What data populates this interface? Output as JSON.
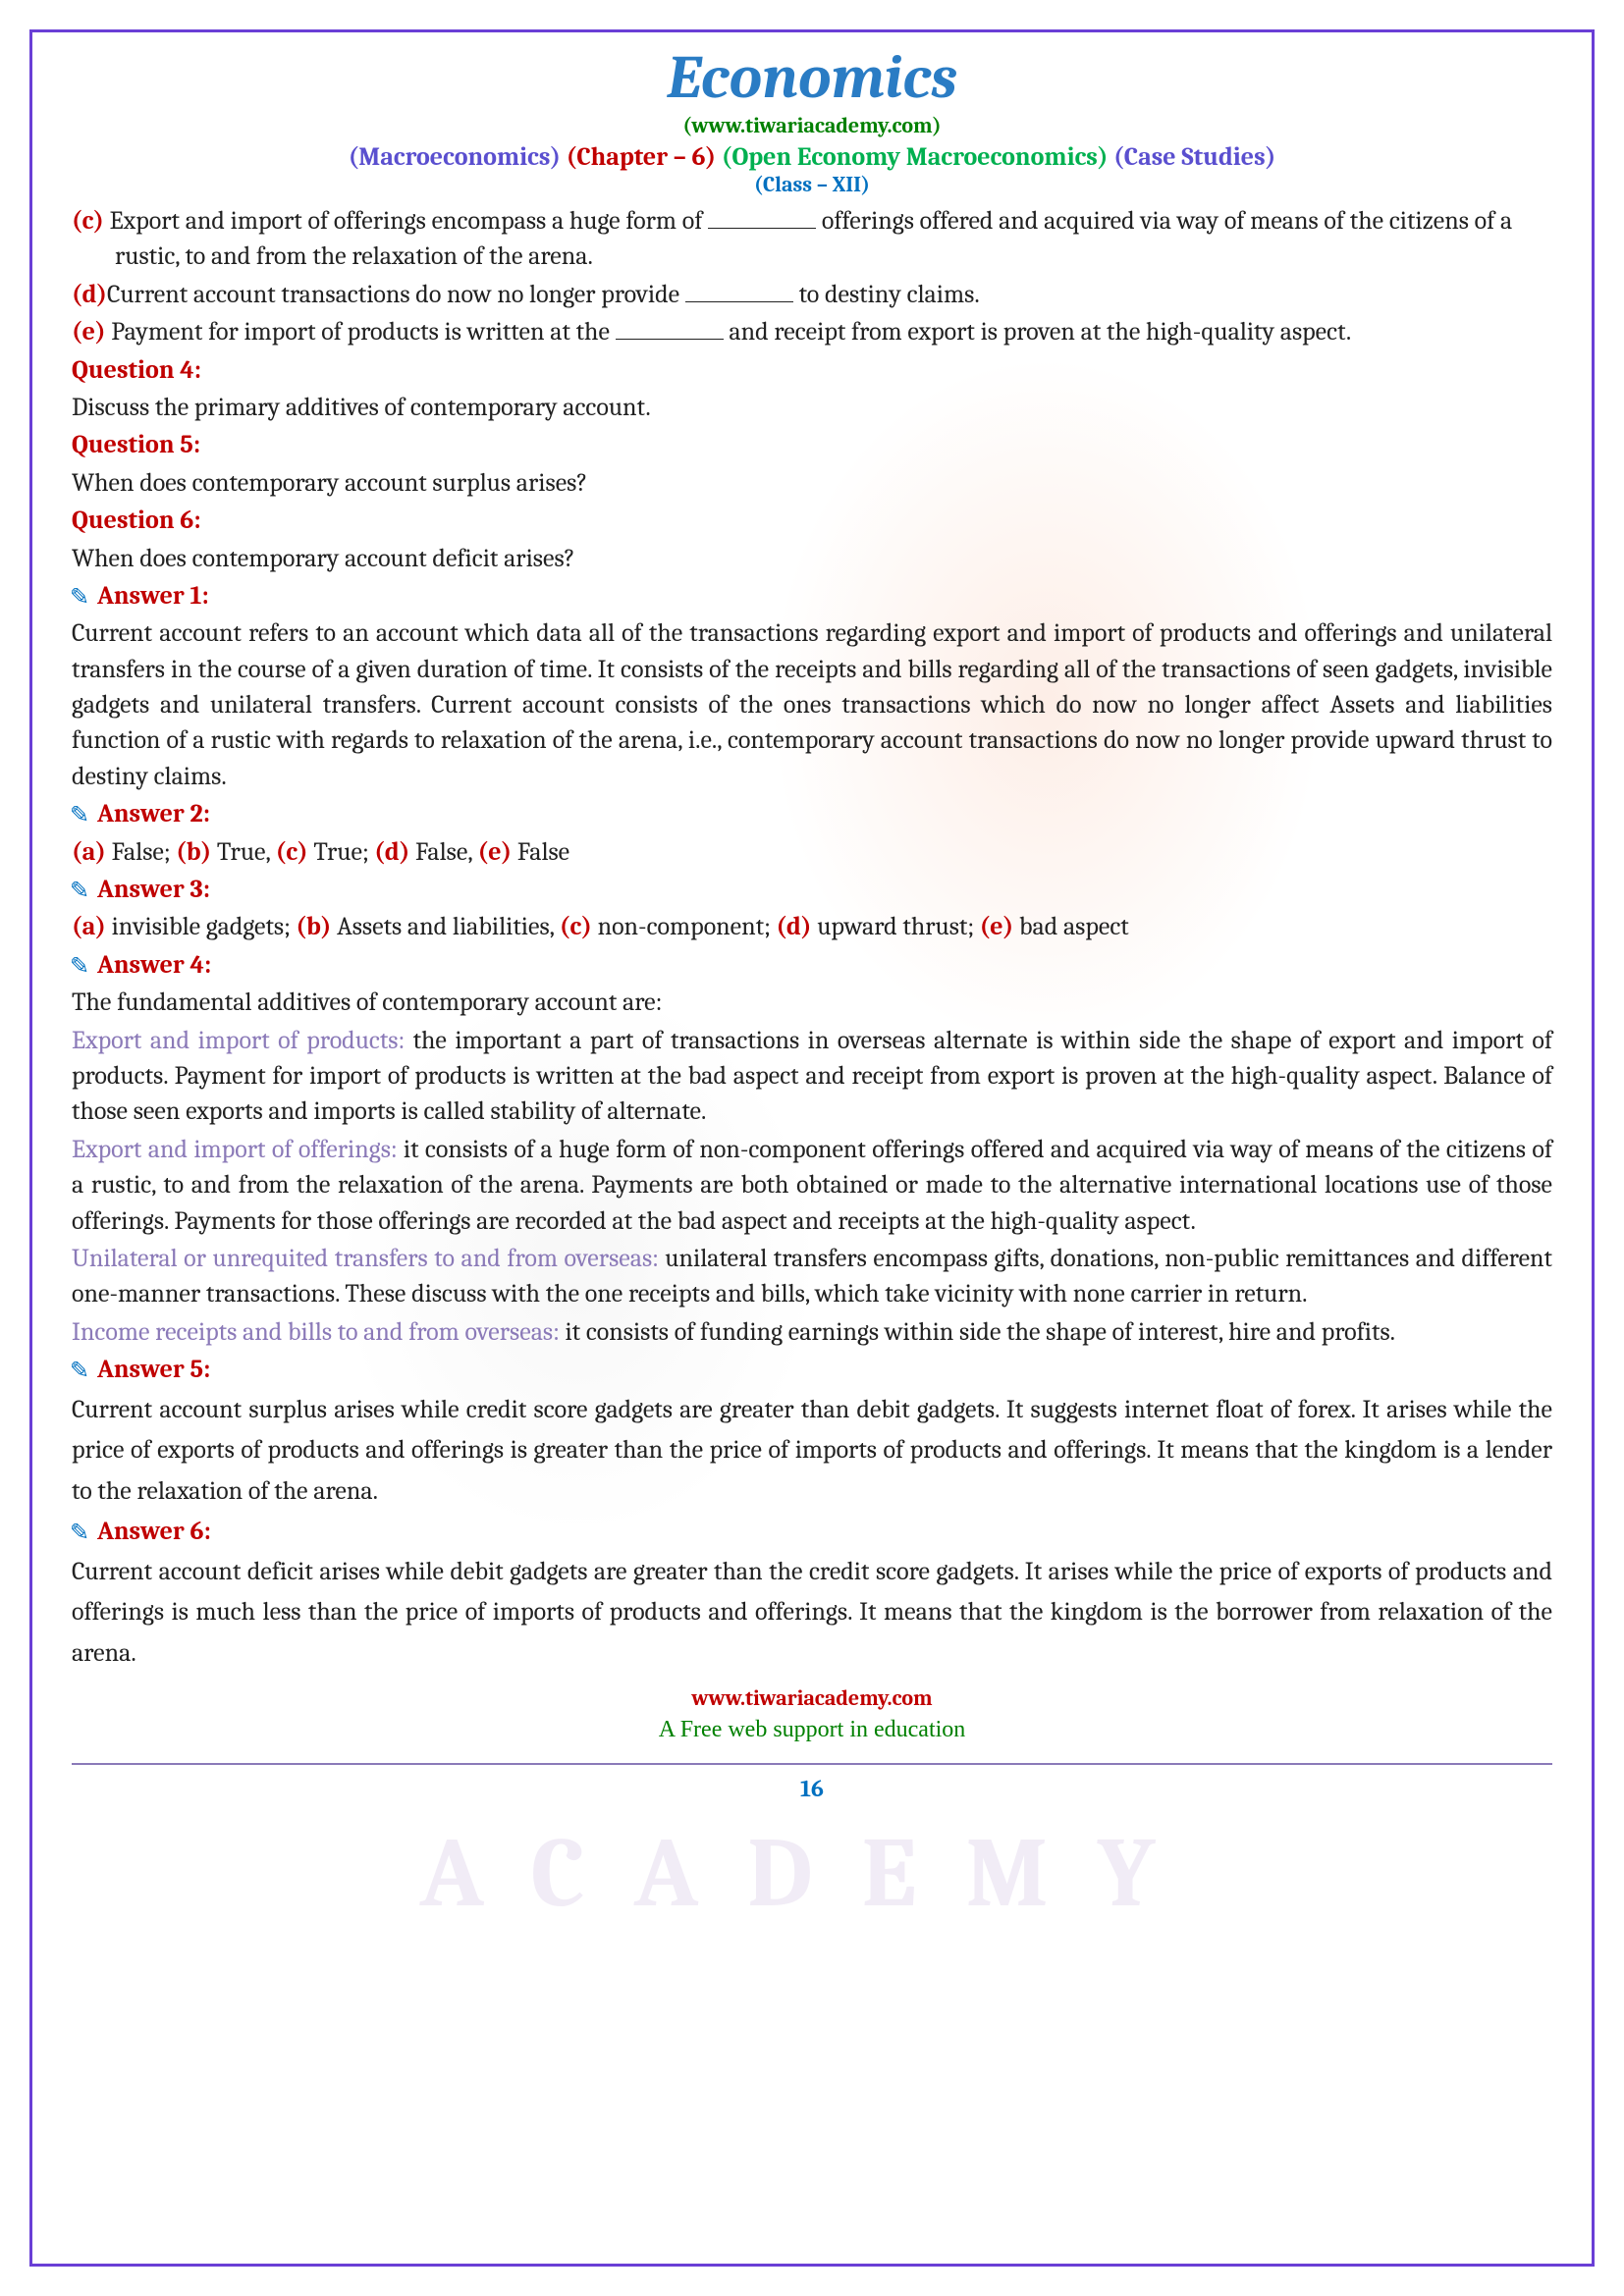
{
  "header": {
    "title": "Economics",
    "website": "(www.tiwariacademy.com)",
    "macro": "(Macroeconomics)",
    "chapter": "(Chapter – 6)",
    "chapterName": "(Open Economy Macroeconomics)",
    "caseStudies": "(Case Studies)",
    "classLabel": "(Class – XII)"
  },
  "options": {
    "c_label": "(c) ",
    "c_text1": "Export and import of offerings encompass a huge form of ",
    "c_text2": " offerings offered and acquired via way of means of the citizens of a rustic, to and from the relaxation of the arena.",
    "d_label": "(d)",
    "d_text1": "Current account transactions do now no longer provide ",
    "d_text2": " to destiny claims.",
    "e_label": "(e) ",
    "e_text1": "Payment for import of products is written at the ",
    "e_text2": " and receipt from export is proven at the high-quality aspect."
  },
  "q4": {
    "head": "Question 4:",
    "body": "Discuss the primary additives of contemporary account."
  },
  "q5": {
    "head": "Question 5:",
    "body": "When does contemporary account surplus arises?"
  },
  "q6": {
    "head": "Question 6:",
    "body": "When does contemporary account deficit arises?"
  },
  "a1": {
    "head": "Answer 1:",
    "body": "Current account refers to an account which data all of the transactions regarding export and import of products and offerings and unilateral transfers in the course of a given duration of time. It consists of the receipts and bills regarding all of the transactions of seen gadgets, invisible gadgets and unilateral transfers. Current account consists of the ones transactions which do now no longer affect Assets and liabilities function of a rustic with regards to relaxation of the arena, i.e., contemporary account transactions do now no longer provide upward thrust to destiny claims."
  },
  "a2": {
    "head": "Answer 2:",
    "a": "(a) ",
    "a_txt": "False; ",
    "b": "(b) ",
    "b_txt": "True, ",
    "c": "(c) ",
    "c_txt": "True; ",
    "d": "(d) ",
    "d_txt": "False, ",
    "e": "(e) ",
    "e_txt": "False"
  },
  "a3": {
    "head": "Answer 3:",
    "a": "(a) ",
    "a_txt": "invisible gadgets; ",
    "b": "(b) ",
    "b_txt": "Assets and liabilities, ",
    "c": "(c) ",
    "c_txt": "non-component; ",
    "d": "(d) ",
    "d_txt": "upward thrust; ",
    "e": "(e) ",
    "e_txt": "bad aspect"
  },
  "a4": {
    "head": "Answer 4:",
    "intro": "The fundamental additives of contemporary account are:",
    "s1_head": "Export and import of products: ",
    "s1_body": "the important a part of transactions in overseas alternate is within side the shape of export and import of products. Payment for import of products is written at the bad aspect and receipt from export is proven at the high-quality aspect. Balance of those seen exports and imports is called stability of alternate.",
    "s2_head": "Export and import of offerings: ",
    "s2_body": "it consists of a huge form of non-component offerings offered and acquired via way of means of the citizens of a rustic, to and from the relaxation of the arena. Payments are both obtained or made to the alternative international locations use of those offerings. Payments for those offerings are recorded at the bad aspect and receipts at the high-quality aspect.",
    "s3_head": "Unilateral or unrequited transfers to and from overseas: ",
    "s3_body": "unilateral transfers encompass gifts, donations, non-public remittances and different one-manner transactions. These discuss with the one receipts and bills, which take vicinity with none carrier in return.",
    "s4_head": "Income receipts and bills to and from overseas: ",
    "s4_body": "it consists of funding earnings within side the shape of interest, hire and profits."
  },
  "a5": {
    "head": "Answer 5:",
    "body": "Current account surplus arises while credit score gadgets are greater than debit gadgets. It suggests internet float of forex. It arises while the price of exports of products and offerings is greater than the price of imports of products and offerings. It means that the kingdom is a lender to the relaxation of the arena."
  },
  "a6": {
    "head": "Answer 6:",
    "body": "Current account deficit arises while debit gadgets are greater than the credit score gadgets. It arises while the price of exports of products and offerings is much less than the price of imports of products and offerings. It means that the kingdom is the borrower from relaxation of the arena."
  },
  "footer": {
    "web": "www.tiwariacademy.com",
    "tag": "A Free web support in education",
    "page": "16"
  },
  "watermark": "ACADEMY"
}
